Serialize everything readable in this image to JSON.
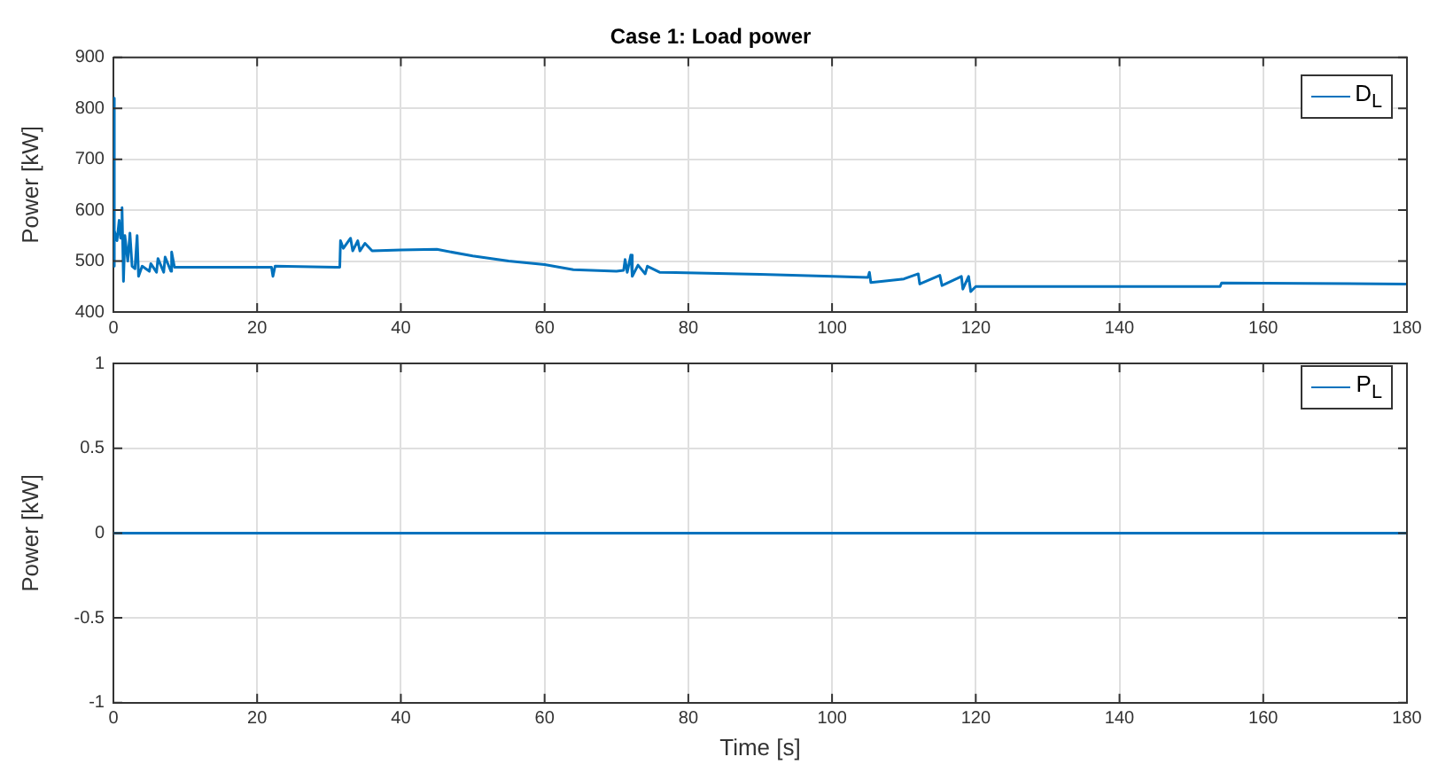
{
  "chart_data": [
    {
      "type": "line",
      "title": "Case 1: Load power",
      "ylabel": "Power [kW]",
      "xlim": [
        0,
        180
      ],
      "xticks": [
        0,
        20,
        40,
        60,
        80,
        100,
        120,
        140,
        160,
        180
      ],
      "ylim": [
        400,
        900
      ],
      "yticks": [
        400,
        500,
        600,
        700,
        800,
        900
      ],
      "grid": true,
      "legend": "top right",
      "marker": "none",
      "line_style": "solid",
      "x": [
        0,
        0.05,
        0.2,
        0.5,
        0.8,
        1,
        1.2,
        1.4,
        1.6,
        2,
        2.3,
        2.6,
        3,
        3.3,
        3.5,
        4,
        5,
        5.2,
        6,
        6.2,
        7,
        7.2,
        8,
        8.1,
        8.5,
        15,
        22,
        22.2,
        22.5,
        31,
        31.5,
        31.6,
        32,
        33,
        33.3,
        34,
        34.3,
        35,
        36,
        40,
        45,
        50,
        55,
        60,
        64,
        70,
        71,
        71.2,
        71.5,
        72,
        72.2,
        73,
        74,
        74.3,
        76,
        90,
        100,
        105,
        105.2,
        105.4,
        110,
        112,
        112.2,
        115,
        115.3,
        118,
        118.2,
        119,
        119.3,
        120,
        154,
        154.2,
        180
      ],
      "series": [
        {
          "name": "D$_{L}$",
          "color": "#0072bd",
          "values": [
            490,
            820,
            560,
            540,
            580,
            545,
            605,
            460,
            550,
            500,
            555,
            490,
            485,
            550,
            470,
            490,
            480,
            495,
            478,
            505,
            478,
            508,
            480,
            518,
            488,
            488,
            488,
            470,
            490,
            488,
            488,
            540,
            525,
            545,
            520,
            540,
            520,
            535,
            520,
            522,
            523,
            510,
            500,
            493,
            483,
            480,
            482,
            503,
            478,
            512,
            470,
            492,
            475,
            490,
            478,
            474,
            470,
            468,
            478,
            458,
            465,
            475,
            455,
            472,
            452,
            470,
            445,
            470,
            440,
            450,
            450,
            457,
            455
          ]
        }
      ]
    },
    {
      "type": "line",
      "xlabel": "Time [s]",
      "ylabel": "Power [kW]",
      "xlim": [
        0,
        180
      ],
      "xticks": [
        0,
        20,
        40,
        60,
        80,
        100,
        120,
        140,
        160,
        180
      ],
      "ylim": [
        -1,
        1
      ],
      "yticks": [
        -1,
        -0.5,
        0,
        0.5,
        1
      ],
      "grid": true,
      "legend": "top right",
      "marker": "none",
      "line_style": "solid",
      "x": [
        0,
        180
      ],
      "series": [
        {
          "name": "P$_{L}$",
          "color": "#0072bd",
          "values": [
            0,
            0
          ]
        }
      ]
    }
  ]
}
